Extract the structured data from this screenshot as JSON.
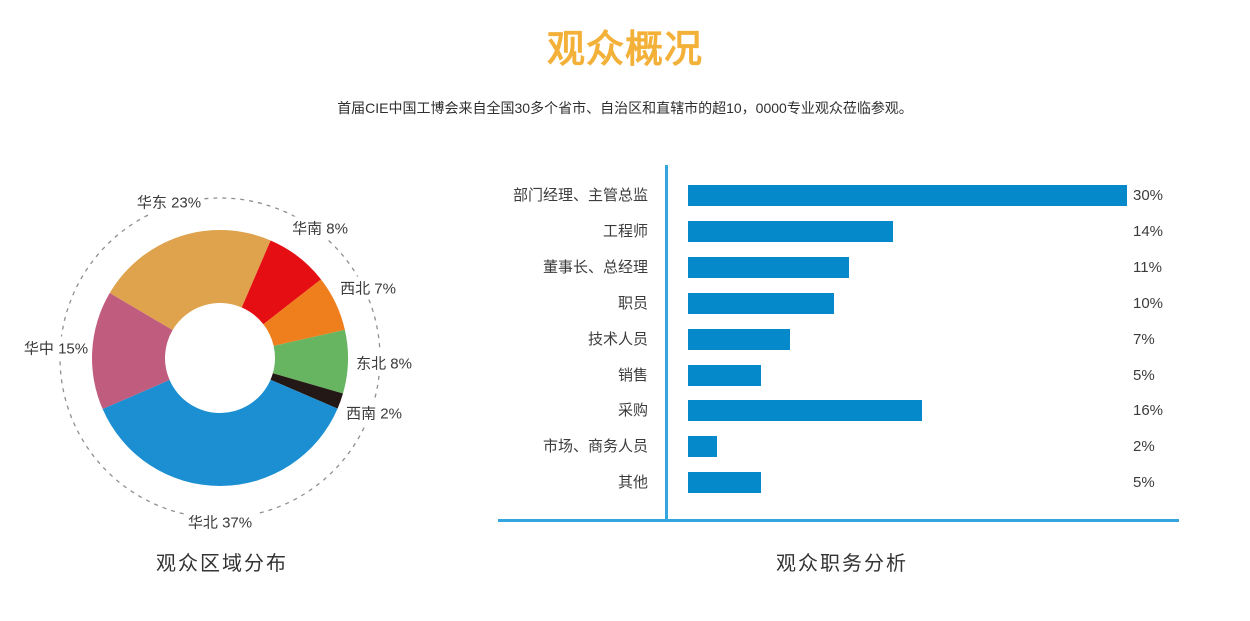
{
  "header": {
    "title": "观众概况",
    "title_color": "#F3B139",
    "subtitle": "首届CIE中国工博会来自全国30多个省市、自治区和直辖市的超10，0000专业观众莅临参观。"
  },
  "chart_data": [
    {
      "type": "pie",
      "title": "观众区域分布",
      "donut": true,
      "unit": "%",
      "start_angle_deg": -59.5,
      "direction": "clockwise",
      "decor": {
        "dashed_ring": true,
        "ring_color": "#8f8f8f"
      },
      "slices": [
        {
          "label": "华东",
          "value": 23,
          "color": "#DFA24D"
        },
        {
          "label": "华南",
          "value": 8,
          "color": "#E50E12"
        },
        {
          "label": "西北",
          "value": 7,
          "color": "#EF7E1D"
        },
        {
          "label": "东北",
          "value": 8,
          "color": "#68B561"
        },
        {
          "label": "西南",
          "value": 2,
          "color": "#231815"
        },
        {
          "label": "华北",
          "value": 37,
          "color": "#1B8FD2"
        },
        {
          "label": "华中",
          "value": 15,
          "color": "#C05C7D"
        }
      ]
    },
    {
      "type": "bar",
      "title": "观众职务分析",
      "orientation": "horizontal",
      "unit": "%",
      "xlim": [
        0,
        30
      ],
      "grid": false,
      "bar_color": "#0589CB",
      "axis_color": "#35A5DF",
      "categories": [
        "部门经理、主管总监",
        "工程师",
        "董事长、总经理",
        "职员",
        "技术人员",
        "销售",
        "采购",
        "市场、商务人员",
        "其他"
      ],
      "values": [
        30,
        14,
        11,
        10,
        7,
        5,
        16,
        2,
        5
      ]
    }
  ]
}
